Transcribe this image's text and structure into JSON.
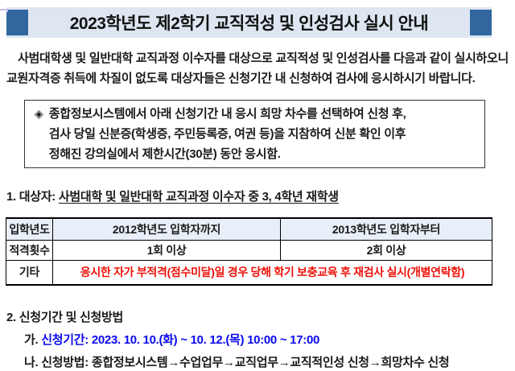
{
  "title": {
    "text": "2023학년도 제2학기 교직적성 및 인성검사 실시 안내"
  },
  "intro": {
    "text": "사범대학생 및 일반대학 교직과정 이수자를 대상으로 교직적성 및 인성검사를 다음과 같이 실시하오니 교원자격증 취득에 차질이 없도록 대상자들은 신청기간 내 신청하여 검사에 응시하시기 바랍니다."
  },
  "notice_box": {
    "bullet": "◈",
    "lines": [
      "종합정보시스템에서 아래 신청기간 내 응시 희망 차수를 선택하여 신청 후,",
      "검사 당일 신분증(학생증, 주민등록증, 여권 등)을 지참하여 신분 확인 이후",
      "정해진 강의실에서 제한시간(30분) 동안 응시함."
    ]
  },
  "section1": {
    "label": "1. 대상자:",
    "value": "사범대학 및 일반대학 교직과정 이수자 중 3, 4학년 재학생"
  },
  "table": {
    "header": [
      "입학년도",
      "2012학년도 입학자까지",
      "2013학년도 입학자부터"
    ],
    "row_count": [
      "적격횟수",
      "1회 이상",
      "2회 이상"
    ],
    "row_etc": {
      "label": "기타",
      "value": "응시한 자가 부적격(점수미달)일 경우 당해 학기 보충교육 후 재검사 실시(개별연락함)"
    }
  },
  "section2": {
    "heading": "2. 신청기간 및 신청방법",
    "item_a_prefix": "가.",
    "item_a_value": "신청기간: 2023. 10. 10.(화) ~ 10. 12.(목) 10:00 ~ 17:00",
    "item_b_prefix": "나.",
    "item_b_value": "신청방법: 종합정보시스템→수업업무→교직업무→교직적인성 신청→희망차수 신청"
  },
  "colors": {
    "accent_blue": "#31679e",
    "banner_bg": "#dde6f1",
    "link_blue": "#0a0af0",
    "alert_red": "#ee1209",
    "header_row_bg": "#e9eff8"
  }
}
